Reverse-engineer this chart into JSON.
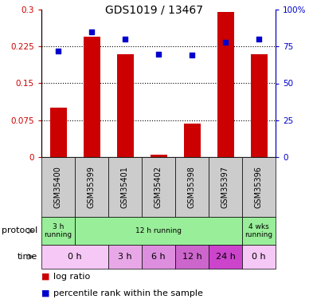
{
  "title": "GDS1019 / 13467",
  "samples": [
    "GSM35400",
    "GSM35399",
    "GSM35401",
    "GSM35402",
    "GSM35398",
    "GSM35397",
    "GSM35396"
  ],
  "log_ratio": [
    0.1,
    0.245,
    0.21,
    0.005,
    0.068,
    0.295,
    0.21
  ],
  "percentile_rank": [
    72,
    85,
    80,
    70,
    69,
    78,
    80
  ],
  "bar_color": "#cc0000",
  "dot_color": "#0000cc",
  "ylim_left": [
    0,
    0.3
  ],
  "ylim_right": [
    0,
    100
  ],
  "yticks_left": [
    0,
    0.075,
    0.15,
    0.225,
    0.3
  ],
  "ytick_labels_left": [
    "0",
    "0.075",
    "0.15",
    "0.225",
    "0.3"
  ],
  "yticks_right": [
    0,
    25,
    50,
    75,
    100
  ],
  "ytick_labels_right": [
    "0",
    "25",
    "50",
    "75",
    "100%"
  ],
  "protocol_data": [
    {
      "label": "3 h\nrunning",
      "start": 0,
      "end": 1,
      "color": "#99ee99"
    },
    {
      "label": "12 h running",
      "start": 1,
      "end": 6,
      "color": "#99ee99"
    },
    {
      "label": "4 wks\nrunning",
      "start": 6,
      "end": 7,
      "color": "#99ee99"
    }
  ],
  "time_data": [
    {
      "label": "0 h",
      "start": 0,
      "end": 2,
      "color": "#f5c8f5"
    },
    {
      "label": "3 h",
      "start": 2,
      "end": 3,
      "color": "#e8a8e8"
    },
    {
      "label": "6 h",
      "start": 3,
      "end": 4,
      "color": "#de8ede"
    },
    {
      "label": "12 h",
      "start": 4,
      "end": 5,
      "color": "#cc66cc"
    },
    {
      "label": "24 h",
      "start": 5,
      "end": 6,
      "color": "#cc44cc"
    },
    {
      "label": "0 h",
      "start": 6,
      "end": 7,
      "color": "#f5c8f5"
    }
  ],
  "sample_box_color": "#cccccc",
  "tick_label_color_left": "#cc0000",
  "tick_label_color_right": "#0000cc",
  "hgrid_values": [
    0.075,
    0.15,
    0.225
  ]
}
